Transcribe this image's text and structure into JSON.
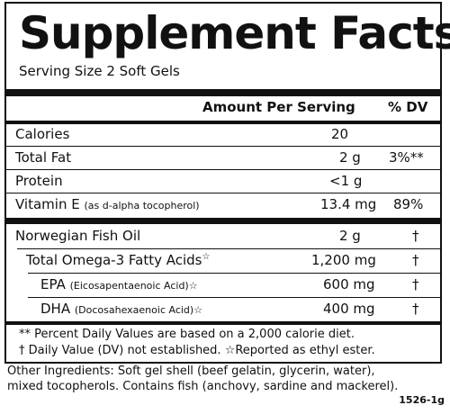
{
  "label": {
    "title": "Supplement Facts",
    "serving_size": "Serving Size 2 Soft Gels",
    "header_amount": "Amount Per Serving",
    "header_dv": "% DV",
    "rows": [
      {
        "name": "Calories",
        "detail": "",
        "amount": "20",
        "dv": ""
      },
      {
        "name": "Total Fat",
        "detail": "",
        "amount": "2 g",
        "dv": "3%**"
      },
      {
        "name": "Protein",
        "detail": "",
        "amount": "<1 g",
        "dv": ""
      },
      {
        "name": "Vitamin E",
        "detail": "(as d-alpha tocopherol)",
        "amount": "13.4 mg",
        "dv": "89%"
      },
      {
        "name": "Norwegian Fish Oil",
        "detail": "",
        "amount": "2 g",
        "dv": "†"
      },
      {
        "name": "Total Omega-3 Fatty Acids",
        "detail": "☆",
        "amount": "1,200 mg",
        "dv": "†"
      },
      {
        "name": "EPA",
        "detail": "(Eicosapentaenoic Acid)☆",
        "amount": "600 mg",
        "dv": "†"
      },
      {
        "name": "DHA",
        "detail": "(Docosahexaenoic Acid)☆",
        "amount": "400 mg",
        "dv": "†"
      }
    ],
    "footnote_1": "** Percent Daily Values are based on a 2,000 calorie diet.",
    "footnote_2": "† Daily Value (DV) not established.  ☆Reported as ethyl ester."
  },
  "ingredients": {
    "line_1": "Other Ingredients: Soft gel shell (beef gelatin, glycerin, water),",
    "line_2": "mixed tocopherols. Contains fish (anchovy, sardine and mackerel)."
  },
  "product_code": "1526-1g"
}
